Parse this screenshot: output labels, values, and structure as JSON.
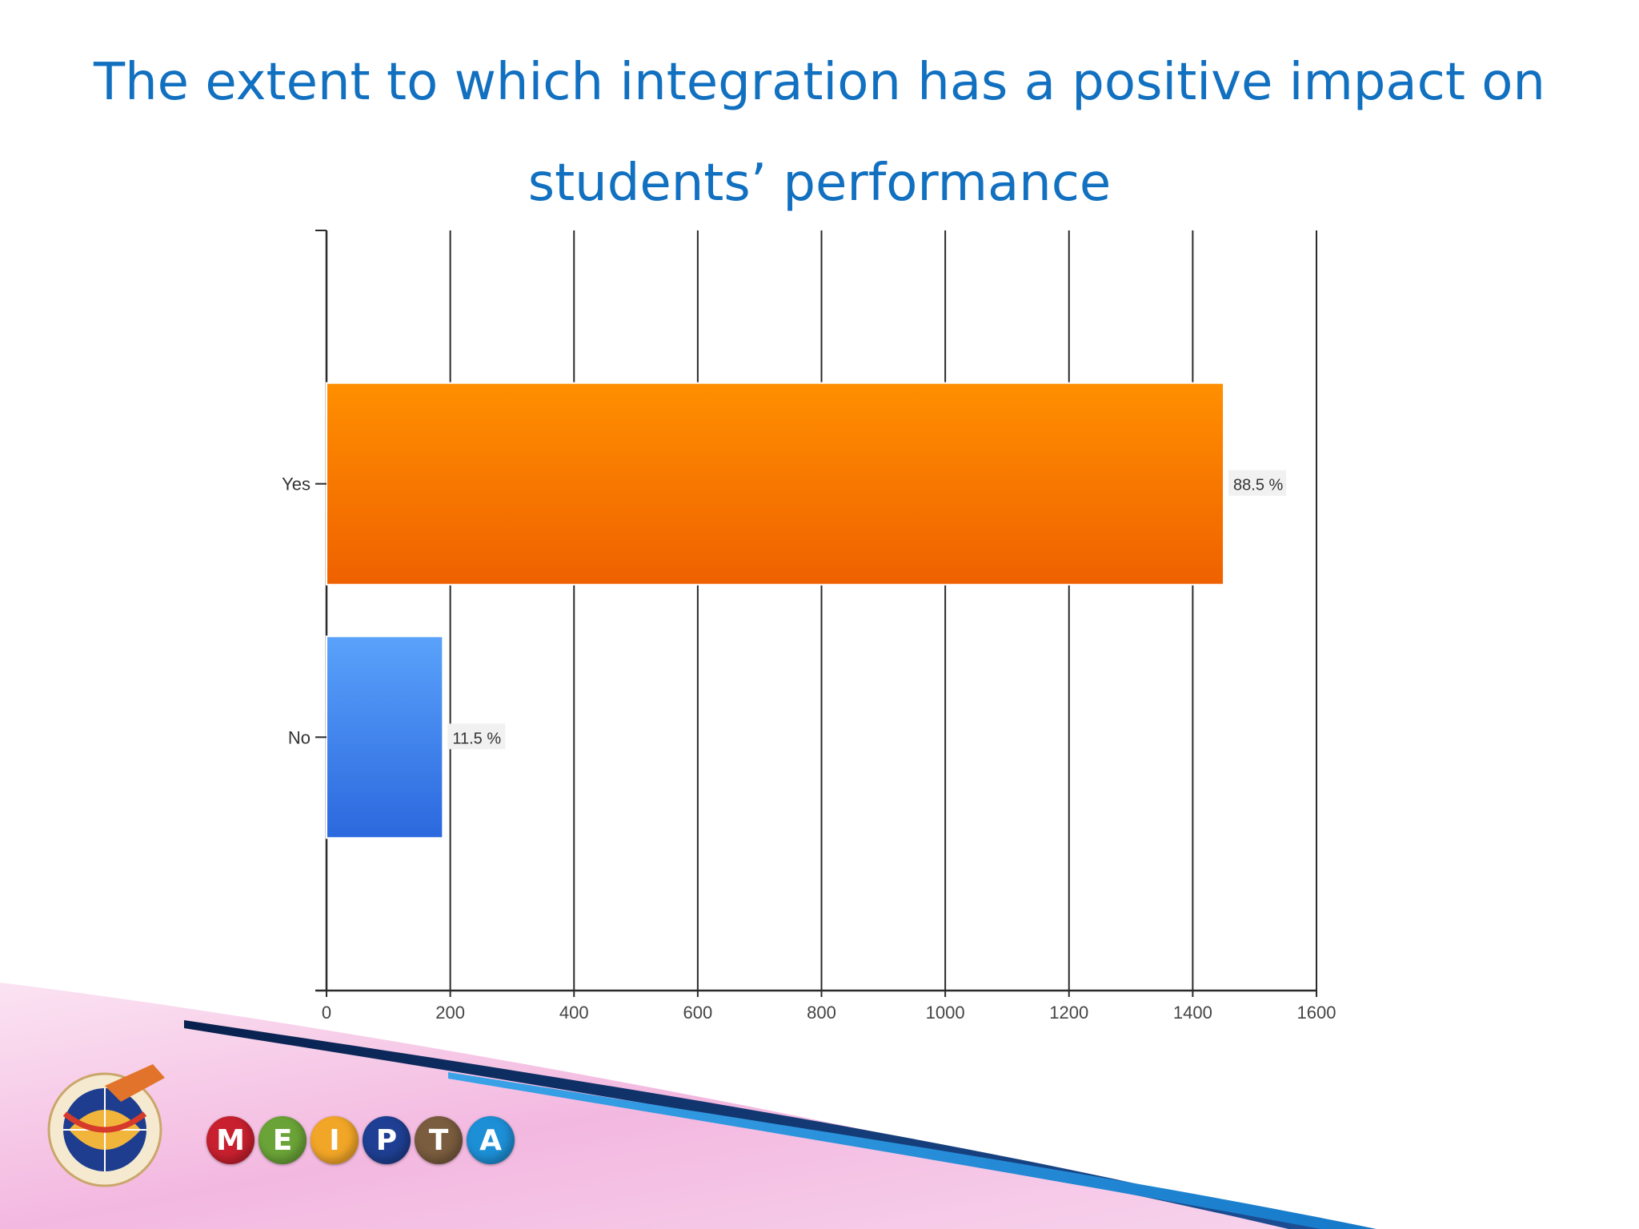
{
  "slide": {
    "title_line1": "The extent to which integration has a positive impact on",
    "title_line2": "students’ performance"
  },
  "chart_data": {
    "type": "bar",
    "orientation": "horizontal",
    "categories": [
      "Yes",
      "No"
    ],
    "values": [
      1450,
      188
    ],
    "data_labels": [
      "88.5 %",
      "11.5 %"
    ],
    "colors": [
      "#f57a00",
      "#3a7fe8"
    ],
    "xlim": [
      0,
      1600
    ],
    "xticks": [
      "0",
      "200",
      "400",
      "600",
      "800",
      "1000",
      "1200",
      "1400",
      "1600"
    ],
    "grid": true,
    "title": "",
    "xlabel": "",
    "ylabel": ""
  },
  "footer": {
    "crest_icon": "ministry-crest-icon",
    "brand_letters": [
      "M",
      "E",
      "I",
      "P",
      "T",
      "A"
    ],
    "brand_colors": [
      "#c8202e",
      "#6aa337",
      "#f2a627",
      "#1e3f93",
      "#7a5c3e",
      "#1d8fd6"
    ],
    "band_colors": [
      "#0b2f6b",
      "#1c8fd9",
      "#f4a9d8"
    ]
  }
}
